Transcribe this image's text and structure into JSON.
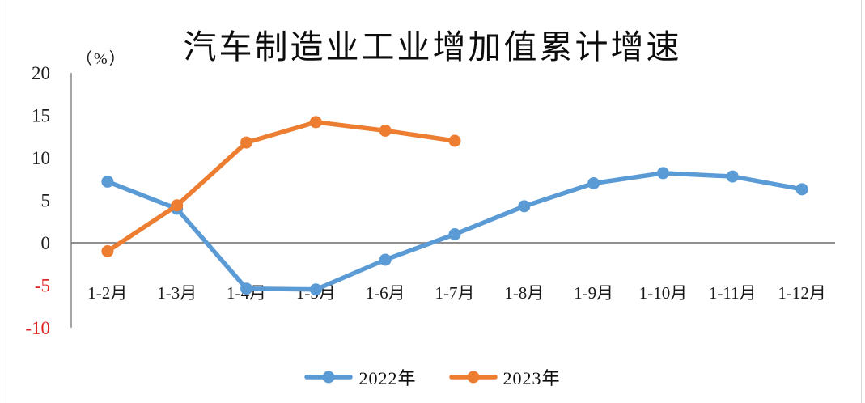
{
  "chart_data": {
    "type": "line",
    "title": "汽车制造业工业增加值累计增速",
    "unit_label": "（%）",
    "categories": [
      "1-2月",
      "1-3月",
      "1-4月",
      "1-5月",
      "1-6月",
      "1-7月",
      "1-8月",
      "1-9月",
      "1-10月",
      "1-11月",
      "1-12月"
    ],
    "series": [
      {
        "name": "2022年",
        "color": "#5B9BD5",
        "values": [
          7.2,
          4.0,
          -5.4,
          -5.5,
          -2.0,
          1.0,
          4.3,
          7.0,
          8.2,
          7.8,
          6.3
        ]
      },
      {
        "name": "2023年",
        "color": "#ED7D31",
        "values": [
          -1.0,
          4.4,
          11.8,
          14.2,
          13.2,
          12.0
        ]
      }
    ],
    "yticks": [
      20,
      15,
      10,
      5,
      0,
      -5,
      -10
    ],
    "ylim": [
      -10,
      20
    ],
    "ylabel": "",
    "xlabel": "",
    "grid": false,
    "legend_position": "bottom",
    "axis_color": "#808080",
    "tick_color": "#1f1f1f",
    "negative_tick_color": "#e02424"
  }
}
